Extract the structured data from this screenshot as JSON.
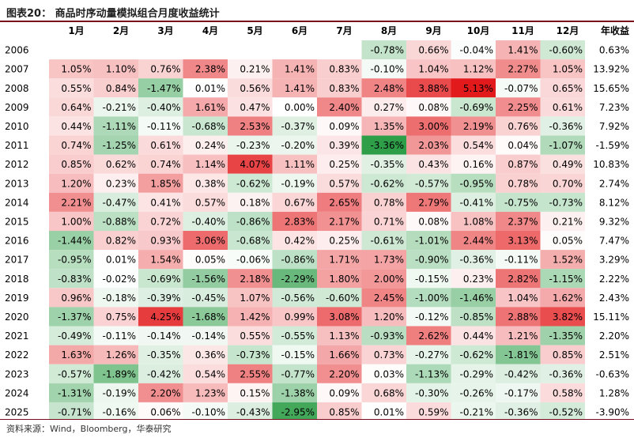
{
  "title": "图表20： 商品时序动量模拟组合月度收益统计",
  "source": "资料来源：Wind，Bloomberg，华泰研究",
  "chart_data": {
    "type": "heatmap",
    "title": "图表20： 商品时序动量模拟组合月度收益统计",
    "columns": [
      "1月",
      "2月",
      "3月",
      "4月",
      "5月",
      "6月",
      "7月",
      "8月",
      "9月",
      "10月",
      "11月",
      "12月"
    ],
    "total_header": "年收益",
    "rows": [
      "2006",
      "2007",
      "2008",
      "2009",
      "2010",
      "2011",
      "2012",
      "2013",
      "2014",
      "2015",
      "2016",
      "2017",
      "2018",
      "2019",
      "2020",
      "2021",
      "2022",
      "2023",
      "2024",
      "2025"
    ],
    "values": [
      [
        null,
        null,
        null,
        null,
        null,
        null,
        null,
        -0.78,
        0.66,
        -0.04,
        1.41,
        -0.6
      ],
      [
        1.05,
        1.1,
        0.76,
        2.38,
        0.21,
        1.41,
        0.83,
        -0.1,
        1.04,
        1.12,
        2.27,
        1.05
      ],
      [
        0.55,
        0.84,
        -1.47,
        0.01,
        0.56,
        1.41,
        0.83,
        2.48,
        3.88,
        5.13,
        -0.07,
        0.65
      ],
      [
        0.64,
        -0.21,
        -0.4,
        1.61,
        0.47,
        0.0,
        2.4,
        0.27,
        0.08,
        -0.69,
        2.25,
        0.61
      ],
      [
        0.44,
        -1.11,
        -0.11,
        -0.68,
        2.53,
        -0.37,
        0.09,
        1.35,
        3.0,
        2.19,
        0.76,
        -0.36
      ],
      [
        0.74,
        -1.25,
        0.61,
        0.24,
        -0.23,
        -0.2,
        0.39,
        -3.36,
        2.03,
        0.54,
        0.04,
        -1.07
      ],
      [
        0.85,
        0.62,
        0.74,
        1.14,
        4.07,
        1.11,
        0.25,
        -0.35,
        0.43,
        0.16,
        0.87,
        0.49
      ],
      [
        1.2,
        0.23,
        1.85,
        0.38,
        -0.62,
        -0.19,
        0.57,
        -0.62,
        -0.57,
        -0.95,
        0.78,
        0.7
      ],
      [
        2.21,
        -0.47,
        0.41,
        0.57,
        0.18,
        0.67,
        2.65,
        0.78,
        2.79,
        -0.41,
        -0.75,
        -0.73
      ],
      [
        1.0,
        -0.88,
        0.72,
        -0.4,
        -0.86,
        2.83,
        2.17,
        0.71,
        0.08,
        1.08,
        2.37,
        0.21
      ],
      [
        -1.44,
        0.82,
        0.93,
        3.06,
        -0.68,
        0.42,
        0.25,
        -0.61,
        -1.01,
        2.44,
        3.13,
        0.05
      ],
      [
        -0.95,
        0.01,
        1.54,
        0.05,
        -0.06,
        -0.86,
        1.71,
        1.73,
        -0.9,
        -0.36,
        -0.11,
        1.52
      ],
      [
        -0.83,
        -0.02,
        -0.69,
        -1.56,
        2.18,
        -2.29,
        1.8,
        2.0,
        -0.15,
        0.23,
        2.82,
        -1.15
      ],
      [
        0.96,
        -0.18,
        -0.39,
        -0.45,
        1.07,
        -0.56,
        -0.6,
        2.45,
        -1.0,
        -1.46,
        1.04,
        1.62
      ],
      [
        -1.37,
        0.75,
        4.25,
        -1.68,
        1.42,
        0.99,
        3.08,
        1.2,
        -0.12,
        -0.85,
        2.88,
        3.82
      ],
      [
        -0.49,
        -0.11,
        -0.14,
        -0.14,
        0.55,
        -0.55,
        1.13,
        -0.93,
        2.62,
        0.44,
        1.21,
        -1.35
      ],
      [
        1.63,
        1.26,
        -0.35,
        0.36,
        -0.73,
        -0.15,
        1.66,
        0.73,
        -0.27,
        -0.62,
        -1.81,
        0.85
      ],
      [
        -0.57,
        -1.89,
        -0.42,
        0.54,
        2.55,
        -0.77,
        2.2,
        0.03,
        -1.13,
        -0.29,
        -0.42,
        -0.36
      ],
      [
        -1.31,
        -0.19,
        2.2,
        1.23,
        0.15,
        -1.38,
        0.09,
        0.68,
        -0.3,
        -0.26,
        -0.17,
        0.58
      ],
      [
        -0.71,
        -0.16,
        0.06,
        -0.1,
        -0.43,
        -2.95,
        0.85,
        0.01,
        0.59,
        -0.21,
        -0.36,
        -0.52
      ]
    ],
    "annual": [
      0.63,
      13.92,
      15.65,
      7.23,
      7.92,
      -1.59,
      10.83,
      2.74,
      8.12,
      9.32,
      7.47,
      3.29,
      2.22,
      2.43,
      15.11,
      2.2,
      2.51,
      -0.63,
      1.28,
      -3.9
    ],
    "value_suffix": "%",
    "colors": {
      "positive_max": "#e31a1c",
      "negative_max": "#2e9e48",
      "neutral": "#ffffff",
      "rule": "#7a0d1b"
    }
  }
}
